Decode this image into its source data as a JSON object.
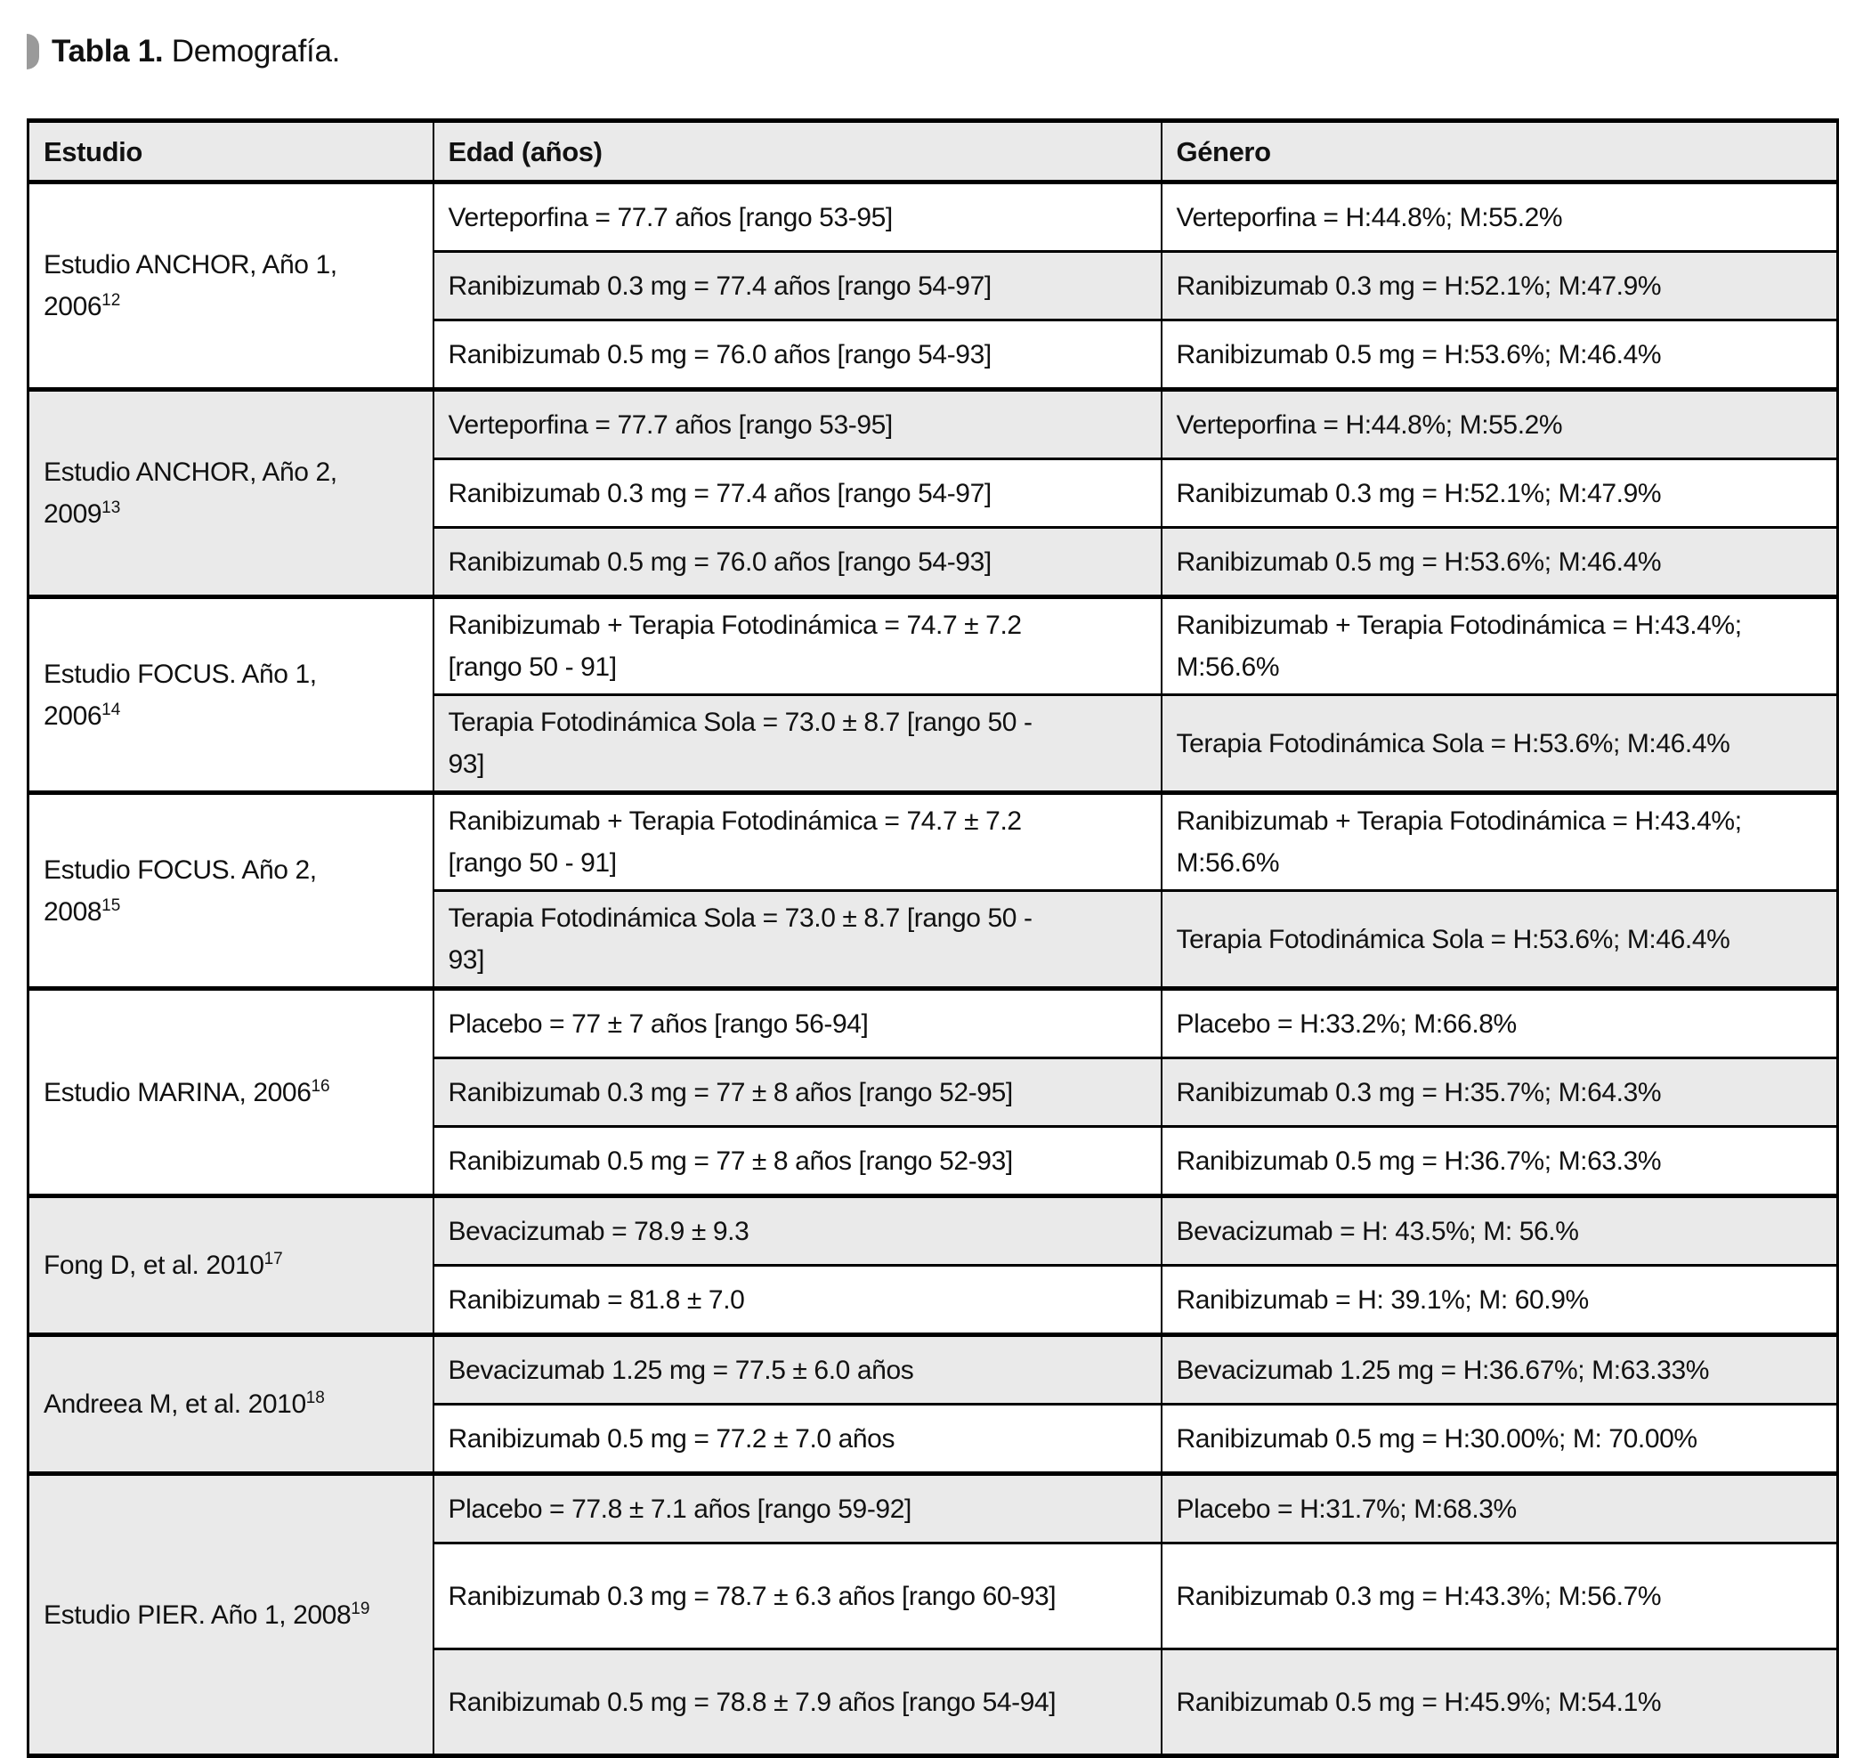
{
  "page": {
    "title_bold": "Tabla 1.",
    "title_rest": " Demografía."
  },
  "colors": {
    "stripe": "#eaeaea",
    "border": "#000000",
    "marker": "#9a9a9a"
  },
  "table": {
    "headers": [
      "Estudio",
      "Edad (años)",
      "Género"
    ],
    "groups": [
      {
        "study_lines": [
          "Estudio ANCHOR, Año 1,",
          "2006"
        ],
        "ref": "12",
        "rows": [
          {
            "edad": [
              "Verteporfina = 77.7 años [rango 53-95]"
            ],
            "genero": [
              "Verteporfina = H:44.8%; M:55.2%"
            ]
          },
          {
            "edad": [
              "Ranibizumab 0.3 mg = 77.4 años [rango 54-97]"
            ],
            "genero": [
              "Ranibizumab 0.3 mg = H:52.1%; M:47.9%"
            ]
          },
          {
            "edad": [
              "Ranibizumab 0.5 mg = 76.0 años [rango 54-93]"
            ],
            "genero": [
              "Ranibizumab 0.5 mg = H:53.6%; M:46.4%"
            ]
          }
        ]
      },
      {
        "study_lines": [
          "Estudio ANCHOR, Año 2,",
          "2009"
        ],
        "ref": "13",
        "rows": [
          {
            "edad": [
              "Verteporfina = 77.7 años [rango 53-95]"
            ],
            "genero": [
              "Verteporfina = H:44.8%; M:55.2%"
            ]
          },
          {
            "edad": [
              "Ranibizumab 0.3 mg = 77.4 años [rango 54-97]"
            ],
            "genero": [
              "Ranibizumab 0.3 mg = H:52.1%; M:47.9%"
            ]
          },
          {
            "edad": [
              "Ranibizumab 0.5 mg = 76.0 años [rango 54-93]"
            ],
            "genero": [
              "Ranibizumab 0.5 mg = H:53.6%; M:46.4%"
            ]
          }
        ]
      },
      {
        "study_lines": [
          "Estudio FOCUS. Año 1,",
          "2006"
        ],
        "ref": "14",
        "rows": [
          {
            "edad": [
              "Ranibizumab + Terapia Fotodinámica = 74.7 ± 7.2",
              "[rango 50 - 91]"
            ],
            "genero": [
              "Ranibizumab + Terapia Fotodinámica = H:43.4%;",
              "M:56.6%"
            ]
          },
          {
            "edad": [
              "Terapia Fotodinámica Sola = 73.0 ± 8.7 [rango 50 -",
              "93]"
            ],
            "genero": [
              "Terapia Fotodinámica Sola = H:53.6%; M:46.4%"
            ]
          }
        ]
      },
      {
        "study_lines": [
          "Estudio FOCUS. Año 2,",
          "2008"
        ],
        "ref": "15",
        "rows": [
          {
            "edad": [
              "Ranibizumab + Terapia Fotodinámica = 74.7 ± 7.2",
              "[rango 50 - 91]"
            ],
            "genero": [
              "Ranibizumab + Terapia Fotodinámica = H:43.4%;",
              "M:56.6%"
            ]
          },
          {
            "edad": [
              "Terapia Fotodinámica Sola = 73.0 ± 8.7 [rango 50 -",
              "93]"
            ],
            "genero": [
              "Terapia Fotodinámica Sola = H:53.6%; M:46.4%"
            ]
          }
        ]
      },
      {
        "study_lines": [
          "Estudio MARINA, 2006"
        ],
        "ref": "16",
        "rows": [
          {
            "edad": [
              "Placebo = 77 ± 7 años [rango 56-94]"
            ],
            "genero": [
              "Placebo = H:33.2%; M:66.8%"
            ]
          },
          {
            "edad": [
              "Ranibizumab 0.3 mg = 77 ± 8 años [rango 52-95]"
            ],
            "genero": [
              "Ranibizumab 0.3 mg = H:35.7%; M:64.3%"
            ]
          },
          {
            "edad": [
              "Ranibizumab 0.5 mg = 77 ± 8 años [rango 52-93]"
            ],
            "genero": [
              "Ranibizumab 0.5 mg = H:36.7%; M:63.3%"
            ]
          }
        ]
      },
      {
        "study_lines": [
          "Fong D, et al. 2010"
        ],
        "ref": "17",
        "rows": [
          {
            "edad": [
              "Bevacizumab = 78.9 ± 9.3"
            ],
            "genero": [
              "Bevacizumab = H: 43.5%; M: 56.%"
            ]
          },
          {
            "edad": [
              "Ranibizumab = 81.8 ± 7.0"
            ],
            "genero": [
              "Ranibizumab = H: 39.1%; M: 60.9%"
            ]
          }
        ]
      },
      {
        "study_lines": [
          "Andreea M, et al. 2010"
        ],
        "ref": "18",
        "rows": [
          {
            "edad": [
              "Bevacizumab 1.25 mg = 77.5 ± 6.0 años"
            ],
            "genero": [
              "Bevacizumab 1.25 mg = H:36.67%; M:63.33%"
            ]
          },
          {
            "edad": [
              "Ranibizumab 0.5 mg = 77.2 ± 7.0 años"
            ],
            "genero": [
              "Ranibizumab 0.5 mg = H:30.00%; M: 70.00%"
            ]
          }
        ]
      },
      {
        "study_lines": [
          "Estudio PIER. Año 1, 2008"
        ],
        "ref": "19",
        "rows": [
          {
            "edad": [
              "Placebo = 77.8 ± 7.1 años [rango 59-92]"
            ],
            "genero": [
              "Placebo = H:31.7%; M:68.3%"
            ]
          },
          {
            "edad": [
              "Ranibizumab 0.3 mg = 78.7 ± 6.3 años [rango 60-93]"
            ],
            "genero": [
              "Ranibizumab 0.3 mg = H:43.3%; M:56.7%"
            ],
            "tall": true
          },
          {
            "edad": [
              "Ranibizumab 0.5 mg = 78.8 ± 7.9 años [rango 54-94]"
            ],
            "genero": [
              "Ranibizumab 0.5 mg = H:45.9%; M:54.1%"
            ],
            "tall": true
          }
        ]
      }
    ]
  }
}
